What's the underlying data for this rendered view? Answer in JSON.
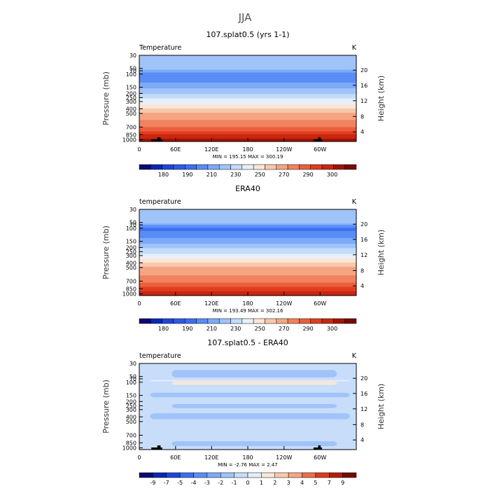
{
  "page": {
    "title": "JJA"
  },
  "colors": {
    "temp_scale": [
      "#0a0a78",
      "#0a28b4",
      "#1e46dc",
      "#2d5ae6",
      "#3c6ef0",
      "#5a8cf5",
      "#7daaf7",
      "#a0c3fa",
      "#c3dcfa",
      "#e6f0fa",
      "#fbe6d7",
      "#f8c8aa",
      "#f5a582",
      "#f0825f",
      "#eb5f3c",
      "#e13c1e",
      "#c8280f",
      "#a01405",
      "#780a00"
    ],
    "diff_scale": [
      "#0a0a78",
      "#0a28b4",
      "#1e46dc",
      "#3c6ef0",
      "#5a8cf5",
      "#7daaf7",
      "#a0c3fa",
      "#c8ddfa",
      "#e2eefc",
      "#fbe6d7",
      "#f8c8aa",
      "#f5a582",
      "#eb6e4b",
      "#dc3c1e",
      "#b41e0a",
      "#780a00"
    ],
    "topography": "#000000"
  },
  "chart_data": [
    {
      "type": "heatmap",
      "title": "107.splat0.5 (yrs 1-1)",
      "left_label": "Temperature",
      "units": "K",
      "ylabel": "Pressure (mb)",
      "ylabel_right": "Height (km)",
      "x_ticks": [
        "0",
        "60E",
        "120E",
        "180",
        "120W",
        "60W"
      ],
      "y_ticks": [
        "30",
        "50",
        "70",
        "100",
        "150",
        "200",
        "250",
        "300",
        "400",
        "500",
        "700",
        "850",
        "1000"
      ],
      "y_ticks_right": [
        "20",
        "16",
        "12",
        "8",
        "4"
      ],
      "stats": "MIN = 195.15   MAX = 300.19",
      "colorbar_labels": [
        "180",
        "190",
        "210",
        "230",
        "250",
        "270",
        "290",
        "300"
      ],
      "profile": {
        "pressure": [
          30,
          50,
          70,
          100,
          150,
          200,
          250,
          300,
          400,
          500,
          700,
          850,
          1000
        ],
        "value": [
          218,
          212,
          208,
          200,
          208,
          217,
          227,
          235,
          250,
          262,
          280,
          290,
          296
        ]
      },
      "topography": [
        {
          "lon": 20,
          "width": 18
        },
        {
          "lon": 289,
          "width": 14
        }
      ]
    },
    {
      "type": "heatmap",
      "title": "ERA40",
      "left_label": "temperature",
      "units": "K",
      "ylabel": "Pressure (mb)",
      "ylabel_right": "Height (km)",
      "x_ticks": [
        "0",
        "60E",
        "120E",
        "180",
        "120W",
        "60W"
      ],
      "y_ticks": [
        "30",
        "50",
        "70",
        "100",
        "150",
        "200",
        "250",
        "300",
        "400",
        "500",
        "700",
        "850",
        "1000"
      ],
      "y_ticks_right": [
        "20",
        "16",
        "12",
        "8",
        "4"
      ],
      "stats": "MIN = 193.49   MAX = 302.16",
      "colorbar_labels": [
        "180",
        "190",
        "210",
        "230",
        "250",
        "270",
        "290",
        "300"
      ],
      "profile": {
        "pressure": [
          30,
          50,
          70,
          100,
          150,
          200,
          250,
          300,
          400,
          500,
          700,
          850,
          1000
        ],
        "value": [
          218,
          212,
          207,
          198,
          207,
          217,
          226,
          234,
          249,
          260,
          277,
          288,
          293
        ]
      },
      "topography": []
    },
    {
      "type": "heatmap",
      "title": "107.splat0.5 - ERA40",
      "left_label": "temperature",
      "units": "K",
      "ylabel": "Pressure (mb)",
      "ylabel_right": "Height (km)",
      "x_ticks": [
        "0",
        "60E",
        "120E",
        "180",
        "120W",
        "60W"
      ],
      "y_ticks": [
        "30",
        "50",
        "70",
        "100",
        "150",
        "200",
        "250",
        "300",
        "400",
        "500",
        "700",
        "850",
        "1000"
      ],
      "y_ticks_right": [
        "20",
        "16",
        "12",
        "8",
        "4"
      ],
      "stats": "MIN = -2.76   MAX =   2.47",
      "colorbar_labels": [
        "-9",
        "-7",
        "-5",
        "-4",
        "-3",
        "-2",
        "-1",
        "0",
        "1",
        "2",
        "3",
        "4",
        "5",
        "7",
        "9"
      ],
      "regions": {
        "background": -0.5,
        "bands": [
          {
            "p_top": 40,
            "p_bottom": 58,
            "value": -1.5
          },
          {
            "p_top": 80,
            "p_bottom": 90,
            "value": 0.5
          },
          {
            "p_top": 95,
            "p_bottom": 110,
            "value": 1.5
          },
          {
            "p_top": 140,
            "p_bottom": 165,
            "value": -1.5
          },
          {
            "p_top": 230,
            "p_bottom": 280,
            "value": -1.5
          },
          {
            "p_top": 350,
            "p_bottom": 450,
            "value": -1.5
          },
          {
            "p_top": 820,
            "p_bottom": 950,
            "value": -1.5
          }
        ]
      },
      "topography": [
        {
          "lon": 20,
          "width": 18
        },
        {
          "lon": 289,
          "width": 14
        }
      ]
    }
  ]
}
